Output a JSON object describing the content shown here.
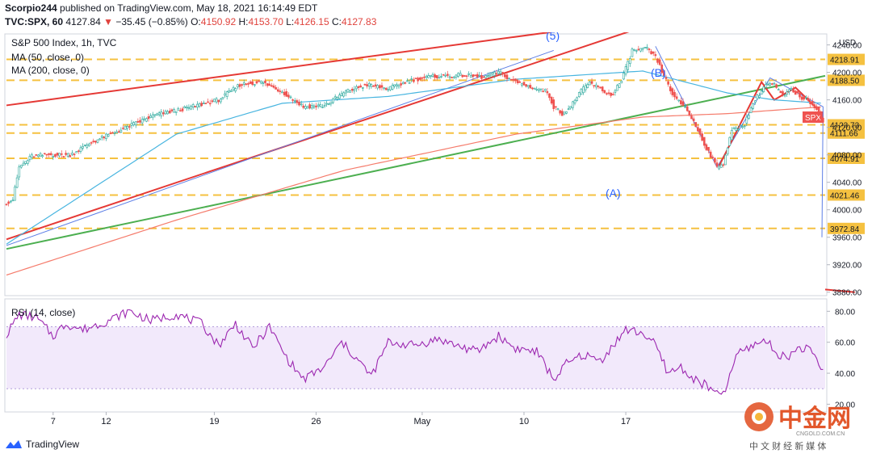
{
  "header": {
    "author": "Scorpio244",
    "published_text": "published on TradingView.com, May 18, 2021 16:14:49 EDT",
    "symbol": "TVC:SPX, 60",
    "last": "4127.84",
    "arrow": "▼",
    "change": "−35.45 (−0.85%)",
    "o_label": "O:",
    "o": "4150.92",
    "h_label": "H:",
    "h": "4153.70",
    "l_label": "L:",
    "l": "4126.15",
    "c_label": "C:",
    "c": "4127.83"
  },
  "legend": {
    "title": "S&P 500 Index, 1h, TVC",
    "ma50": "MA (50, close, 0)",
    "ma200": "MA (200, close, 0)",
    "rsi": "RSI (14, close)"
  },
  "currency": "USD",
  "symbol_tag": "SPX",
  "wave_labels": [
    "(5)",
    "(A)",
    "(B)"
  ],
  "branding": {
    "tradingview": "TradingView",
    "cn_name": "中金网",
    "cn_domain": "CNGOLD.COM.CN",
    "cn_tagline": "中 文 财 经 新 媒 体"
  },
  "colors": {
    "up": "#26a69a",
    "down": "#ef5350",
    "ma50": "#48b5e0",
    "ma200": "#f57b6b",
    "level": "#f5c140",
    "green_line": "#4caf50",
    "red_line": "#e53935",
    "blue_line": "#5c7ee6",
    "rsi": "#9c27b0",
    "rsi_band": "#ede0fa"
  },
  "chart_data": [
    {
      "type": "candlestick",
      "title": "S&P 500 Index, 1h, TVC",
      "ylabel": "USD",
      "x_tick_labels": [
        "7",
        "12",
        "19",
        "26",
        "May",
        "10",
        "17"
      ],
      "y_tick_labels": [
        "3880.00",
        "3920.00",
        "3960.00",
        "4000.00",
        "4040.00",
        "4080.00",
        "4120.00",
        "4160.00",
        "4200.00",
        "4240.00"
      ],
      "ylim": [
        3875,
        4256
      ],
      "price_levels": [
        4218.91,
        4188.5,
        4123.73,
        4111.66,
        4074.91,
        4021.46,
        3972.84
      ],
      "last_price": 4127.84,
      "anchors": [
        [
          0,
          4010
        ],
        [
          3,
          4015
        ],
        [
          6,
          4062
        ],
        [
          12,
          4078
        ],
        [
          20,
          4080
        ],
        [
          30,
          4080
        ],
        [
          40,
          4098
        ],
        [
          55,
          4118
        ],
        [
          70,
          4138
        ],
        [
          85,
          4148
        ],
        [
          100,
          4160
        ],
        [
          110,
          4182
        ],
        [
          120,
          4186
        ],
        [
          130,
          4172
        ],
        [
          140,
          4150
        ],
        [
          150,
          4152
        ],
        [
          160,
          4172
        ],
        [
          170,
          4182
        ],
        [
          180,
          4176
        ],
        [
          190,
          4188
        ],
        [
          200,
          4194
        ],
        [
          215,
          4196
        ],
        [
          225,
          4193
        ],
        [
          232,
          4200
        ],
        [
          240,
          4186
        ],
        [
          250,
          4176
        ],
        [
          255,
          4172
        ],
        [
          258,
          4150
        ],
        [
          262,
          4140
        ],
        [
          266,
          4150
        ],
        [
          270,
          4170
        ],
        [
          275,
          4185
        ],
        [
          280,
          4176
        ],
        [
          285,
          4166
        ],
        [
          290,
          4188
        ],
        [
          295,
          4232
        ],
        [
          302,
          4234
        ],
        [
          306,
          4222
        ],
        [
          310,
          4195
        ],
        [
          315,
          4162
        ],
        [
          320,
          4150
        ],
        [
          324,
          4128
        ],
        [
          330,
          4090
        ],
        [
          335,
          4062
        ],
        [
          338,
          4068
        ],
        [
          342,
          4115
        ],
        [
          348,
          4125
        ],
        [
          352,
          4155
        ],
        [
          358,
          4183
        ],
        [
          362,
          4182
        ],
        [
          366,
          4165
        ],
        [
          370,
          4175
        ],
        [
          375,
          4163
        ],
        [
          378,
          4160
        ],
        [
          382,
          4148
        ],
        [
          385,
          4127
        ]
      ],
      "series": [
        {
          "name": "MA (50, close, 0)",
          "anchors": [
            [
              0,
              3950
            ],
            [
              40,
              4030
            ],
            [
              80,
              4110
            ],
            [
              130,
              4155
            ],
            [
              180,
              4165
            ],
            [
              240,
              4190
            ],
            [
              300,
              4202
            ],
            [
              340,
              4170
            ],
            [
              362,
              4160
            ],
            [
              385,
              4155
            ]
          ]
        },
        {
          "name": "MA (200, close, 0)",
          "anchors": [
            [
              0,
              3905
            ],
            [
              80,
              3985
            ],
            [
              160,
              4058
            ],
            [
              240,
              4110
            ],
            [
              300,
              4135
            ],
            [
              340,
              4140
            ],
            [
              385,
              4150
            ]
          ]
        }
      ],
      "annotations": [
        "(5)",
        "(A)",
        "(B)"
      ]
    },
    {
      "type": "line",
      "title": "RSI (14, close)",
      "y_tick_labels": [
        "20.00",
        "40.00",
        "60.00",
        "80.00"
      ],
      "ylim": [
        15,
        88
      ],
      "band": [
        30,
        70
      ],
      "anchors": [
        [
          0,
          65
        ],
        [
          6,
          78
        ],
        [
          14,
          76
        ],
        [
          22,
          64
        ],
        [
          28,
          72
        ],
        [
          36,
          68
        ],
        [
          48,
          74
        ],
        [
          58,
          80
        ],
        [
          68,
          74
        ],
        [
          80,
          78
        ],
        [
          92,
          72
        ],
        [
          100,
          58
        ],
        [
          108,
          72
        ],
        [
          116,
          56
        ],
        [
          124,
          70
        ],
        [
          132,
          50
        ],
        [
          140,
          36
        ],
        [
          150,
          44
        ],
        [
          158,
          60
        ],
        [
          166,
          48
        ],
        [
          172,
          38
        ],
        [
          180,
          60
        ],
        [
          192,
          58
        ],
        [
          204,
          62
        ],
        [
          212,
          58
        ],
        [
          222,
          54
        ],
        [
          232,
          64
        ],
        [
          240,
          56
        ],
        [
          250,
          54
        ],
        [
          258,
          36
        ],
        [
          264,
          46
        ],
        [
          272,
          52
        ],
        [
          280,
          48
        ],
        [
          292,
          68
        ],
        [
          300,
          66
        ],
        [
          306,
          58
        ],
        [
          312,
          40
        ],
        [
          318,
          44
        ],
        [
          324,
          36
        ],
        [
          330,
          32
        ],
        [
          336,
          25
        ],
        [
          340,
          32
        ],
        [
          344,
          52
        ],
        [
          352,
          58
        ],
        [
          358,
          62
        ],
        [
          362,
          54
        ],
        [
          368,
          50
        ],
        [
          374,
          57
        ],
        [
          378,
          55
        ],
        [
          382,
          50
        ],
        [
          385,
          40
        ]
      ]
    }
  ]
}
